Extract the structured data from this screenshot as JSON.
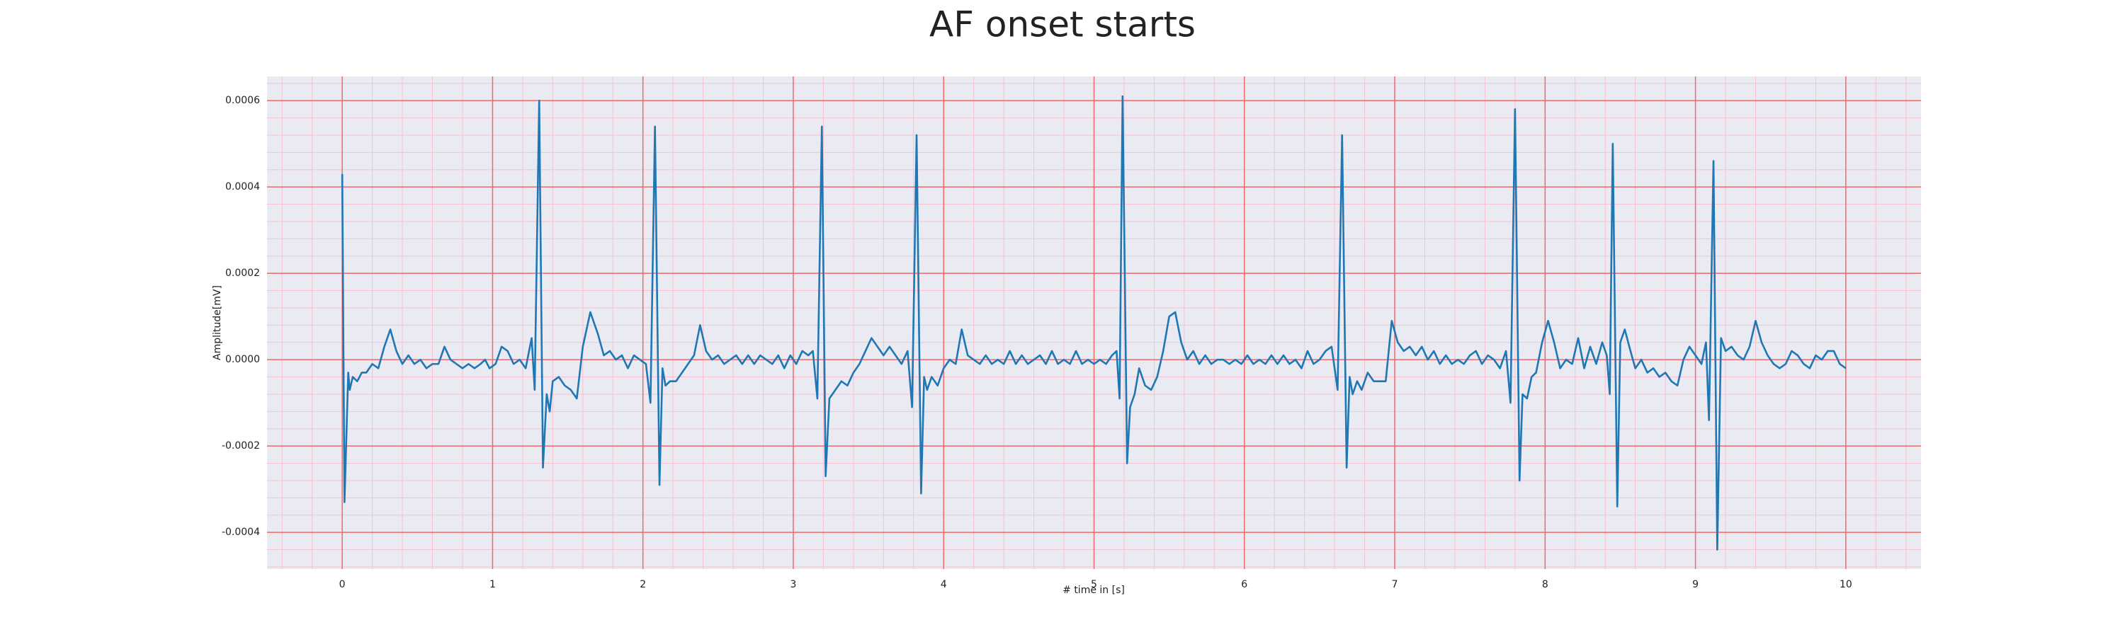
{
  "chart_data": {
    "type": "line",
    "title": "AF onset starts",
    "xlabel": "# time in [s]",
    "ylabel": "Amplitude[mV]",
    "color": "#1f77b4",
    "grid": true,
    "minor_grid": true,
    "xlim": [
      -0.5,
      10.5
    ],
    "ylim": [
      -0.000485,
      0.000656
    ],
    "xticks": [
      0,
      1,
      2,
      3,
      4,
      5,
      6,
      7,
      8,
      9,
      10
    ],
    "yticks": [
      -0.0004,
      -0.0002,
      {
        "value": 0,
        "label": "0.0000"
      },
      0.0002,
      0.0004,
      0.0006
    ],
    "x": [
      0,
      0.015,
      0.04,
      0.05,
      0.07,
      0.1,
      0.13,
      0.16,
      0.2,
      0.24,
      0.28,
      0.32,
      0.36,
      0.4,
      0.44,
      0.48,
      0.52,
      0.56,
      0.6,
      0.64,
      0.68,
      0.72,
      0.76,
      0.8,
      0.84,
      0.88,
      0.92,
      0.95,
      0.98,
      1.02,
      1.06,
      1.1,
      1.14,
      1.18,
      1.22,
      1.26,
      1.28,
      1.31,
      1.335,
      1.36,
      1.38,
      1.4,
      1.44,
      1.48,
      1.52,
      1.56,
      1.6,
      1.65,
      1.7,
      1.74,
      1.78,
      1.82,
      1.86,
      1.9,
      1.94,
      1.98,
      2.02,
      2.05,
      2.08,
      2.11,
      2.13,
      2.15,
      2.18,
      2.22,
      2.26,
      2.3,
      2.34,
      2.38,
      2.42,
      2.46,
      2.5,
      2.54,
      2.58,
      2.62,
      2.66,
      2.7,
      2.74,
      2.78,
      2.82,
      2.86,
      2.9,
      2.94,
      2.98,
      3.02,
      3.06,
      3.1,
      3.13,
      3.16,
      3.19,
      3.215,
      3.24,
      3.28,
      3.32,
      3.36,
      3.4,
      3.44,
      3.48,
      3.52,
      3.56,
      3.6,
      3.64,
      3.68,
      3.72,
      3.76,
      3.79,
      3.82,
      3.85,
      3.87,
      3.89,
      3.92,
      3.96,
      4,
      4.04,
      4.08,
      4.12,
      4.16,
      4.2,
      4.24,
      4.28,
      4.32,
      4.36,
      4.4,
      4.44,
      4.48,
      4.52,
      4.56,
      4.6,
      4.64,
      4.68,
      4.72,
      4.76,
      4.8,
      4.84,
      4.88,
      4.92,
      4.96,
      5,
      5.04,
      5.08,
      5.12,
      5.15,
      5.17,
      5.19,
      5.22,
      5.24,
      5.27,
      5.3,
      5.34,
      5.38,
      5.42,
      5.46,
      5.5,
      5.54,
      5.58,
      5.62,
      5.66,
      5.7,
      5.74,
      5.78,
      5.82,
      5.86,
      5.9,
      5.94,
      5.98,
      6.02,
      6.06,
      6.1,
      6.14,
      6.18,
      6.22,
      6.26,
      6.3,
      6.34,
      6.38,
      6.42,
      6.46,
      6.5,
      6.54,
      6.58,
      6.62,
      6.65,
      6.68,
      6.7,
      6.72,
      6.75,
      6.78,
      6.82,
      6.86,
      6.9,
      6.94,
      6.98,
      7.02,
      7.06,
      7.1,
      7.14,
      7.18,
      7.22,
      7.26,
      7.3,
      7.34,
      7.38,
      7.42,
      7.46,
      7.5,
      7.54,
      7.58,
      7.62,
      7.66,
      7.7,
      7.74,
      7.77,
      7.8,
      7.83,
      7.85,
      7.88,
      7.91,
      7.94,
      7.98,
      8.02,
      8.06,
      8.1,
      8.14,
      8.18,
      8.22,
      8.26,
      8.3,
      8.34,
      8.38,
      8.41,
      8.43,
      8.45,
      8.48,
      8.5,
      8.53,
      8.56,
      8.6,
      8.64,
      8.68,
      8.72,
      8.76,
      8.8,
      8.84,
      8.88,
      8.92,
      8.96,
      9,
      9.04,
      9.07,
      9.09,
      9.12,
      9.145,
      9.17,
      9.2,
      9.24,
      9.28,
      9.32,
      9.36,
      9.4,
      9.44,
      9.48,
      9.52,
      9.56,
      9.6,
      9.64,
      9.68,
      9.72,
      9.76,
      9.8,
      9.84,
      9.88,
      9.92,
      9.96,
      10
    ],
    "values": [
      0.00043,
      -0.00033,
      -3e-05,
      -7e-05,
      -4e-05,
      -5e-05,
      -3e-05,
      -3e-05,
      -1e-05,
      -2e-05,
      3e-05,
      7e-05,
      2e-05,
      -1e-05,
      1e-05,
      -1e-05,
      0,
      -2e-05,
      -1e-05,
      -1e-05,
      3e-05,
      0,
      -1e-05,
      -2e-05,
      -1e-05,
      -2e-05,
      -1e-05,
      0,
      -2e-05,
      -1e-05,
      3e-05,
      2e-05,
      -1e-05,
      0,
      -2e-05,
      5e-05,
      -7e-05,
      0.0006,
      -0.00025,
      -8e-05,
      -0.00012,
      -5e-05,
      -4e-05,
      -6e-05,
      -7e-05,
      -9e-05,
      3e-05,
      0.00011,
      6e-05,
      1e-05,
      2e-05,
      0,
      1e-05,
      -2e-05,
      1e-05,
      0,
      -1e-05,
      -0.0001,
      0.00054,
      -0.00029,
      -2e-05,
      -6e-05,
      -5e-05,
      -5e-05,
      -3e-05,
      -1e-05,
      1e-05,
      8e-05,
      2e-05,
      0,
      1e-05,
      -1e-05,
      0,
      1e-05,
      -1e-05,
      1e-05,
      -1e-05,
      1e-05,
      0,
      -1e-05,
      1e-05,
      -2e-05,
      1e-05,
      -1e-05,
      2e-05,
      1e-05,
      2e-05,
      -9e-05,
      0.00054,
      -0.00027,
      -9e-05,
      -7e-05,
      -5e-05,
      -6e-05,
      -3e-05,
      -1e-05,
      2e-05,
      5e-05,
      3e-05,
      1e-05,
      3e-05,
      1e-05,
      -1e-05,
      2e-05,
      -0.00011,
      0.00052,
      -0.00031,
      -4e-05,
      -7e-05,
      -4e-05,
      -6e-05,
      -2e-05,
      0,
      -1e-05,
      7e-05,
      1e-05,
      0,
      -1e-05,
      1e-05,
      -1e-05,
      0,
      -1e-05,
      2e-05,
      -1e-05,
      1e-05,
      -1e-05,
      0,
      1e-05,
      -1e-05,
      2e-05,
      -1e-05,
      0,
      -1e-05,
      2e-05,
      -1e-05,
      0,
      -1e-05,
      0,
      -1e-05,
      1e-05,
      2e-05,
      -9e-05,
      0.00061,
      -0.00024,
      -0.00011,
      -8e-05,
      -2e-05,
      -6e-05,
      -7e-05,
      -4e-05,
      2e-05,
      0.0001,
      0.00011,
      4e-05,
      0,
      2e-05,
      -1e-05,
      1e-05,
      -1e-05,
      0,
      0,
      -1e-05,
      0,
      -1e-05,
      1e-05,
      -1e-05,
      0,
      -1e-05,
      1e-05,
      -1e-05,
      1e-05,
      -1e-05,
      0,
      -2e-05,
      2e-05,
      -1e-05,
      0,
      2e-05,
      3e-05,
      -7e-05,
      0.00052,
      -0.00025,
      -4e-05,
      -8e-05,
      -5e-05,
      -7e-05,
      -3e-05,
      -5e-05,
      -5e-05,
      -5e-05,
      9e-05,
      4e-05,
      2e-05,
      3e-05,
      1e-05,
      3e-05,
      0,
      2e-05,
      -1e-05,
      1e-05,
      -1e-05,
      0,
      -1e-05,
      1e-05,
      2e-05,
      -1e-05,
      1e-05,
      0,
      -2e-05,
      2e-05,
      -0.0001,
      0.00058,
      -0.00028,
      -8e-05,
      -9e-05,
      -4e-05,
      -3e-05,
      4e-05,
      9e-05,
      4e-05,
      -2e-05,
      0,
      -1e-05,
      5e-05,
      -2e-05,
      3e-05,
      -1e-05,
      4e-05,
      1e-05,
      -8e-05,
      0.0005,
      -0.00034,
      4e-05,
      7e-05,
      3e-05,
      -2e-05,
      0,
      -3e-05,
      -2e-05,
      -4e-05,
      -3e-05,
      -5e-05,
      -6e-05,
      0,
      3e-05,
      1e-05,
      -1e-05,
      4e-05,
      -0.00014,
      0.00046,
      -0.00044,
      5e-05,
      2e-05,
      3e-05,
      1e-05,
      0,
      3e-05,
      9e-05,
      4e-05,
      1e-05,
      -1e-05,
      -2e-05,
      -1e-05,
      2e-05,
      1e-05,
      -1e-05,
      -2e-05,
      1e-05,
      0,
      2e-05,
      2e-05,
      -1e-05,
      -2e-05
    ]
  }
}
